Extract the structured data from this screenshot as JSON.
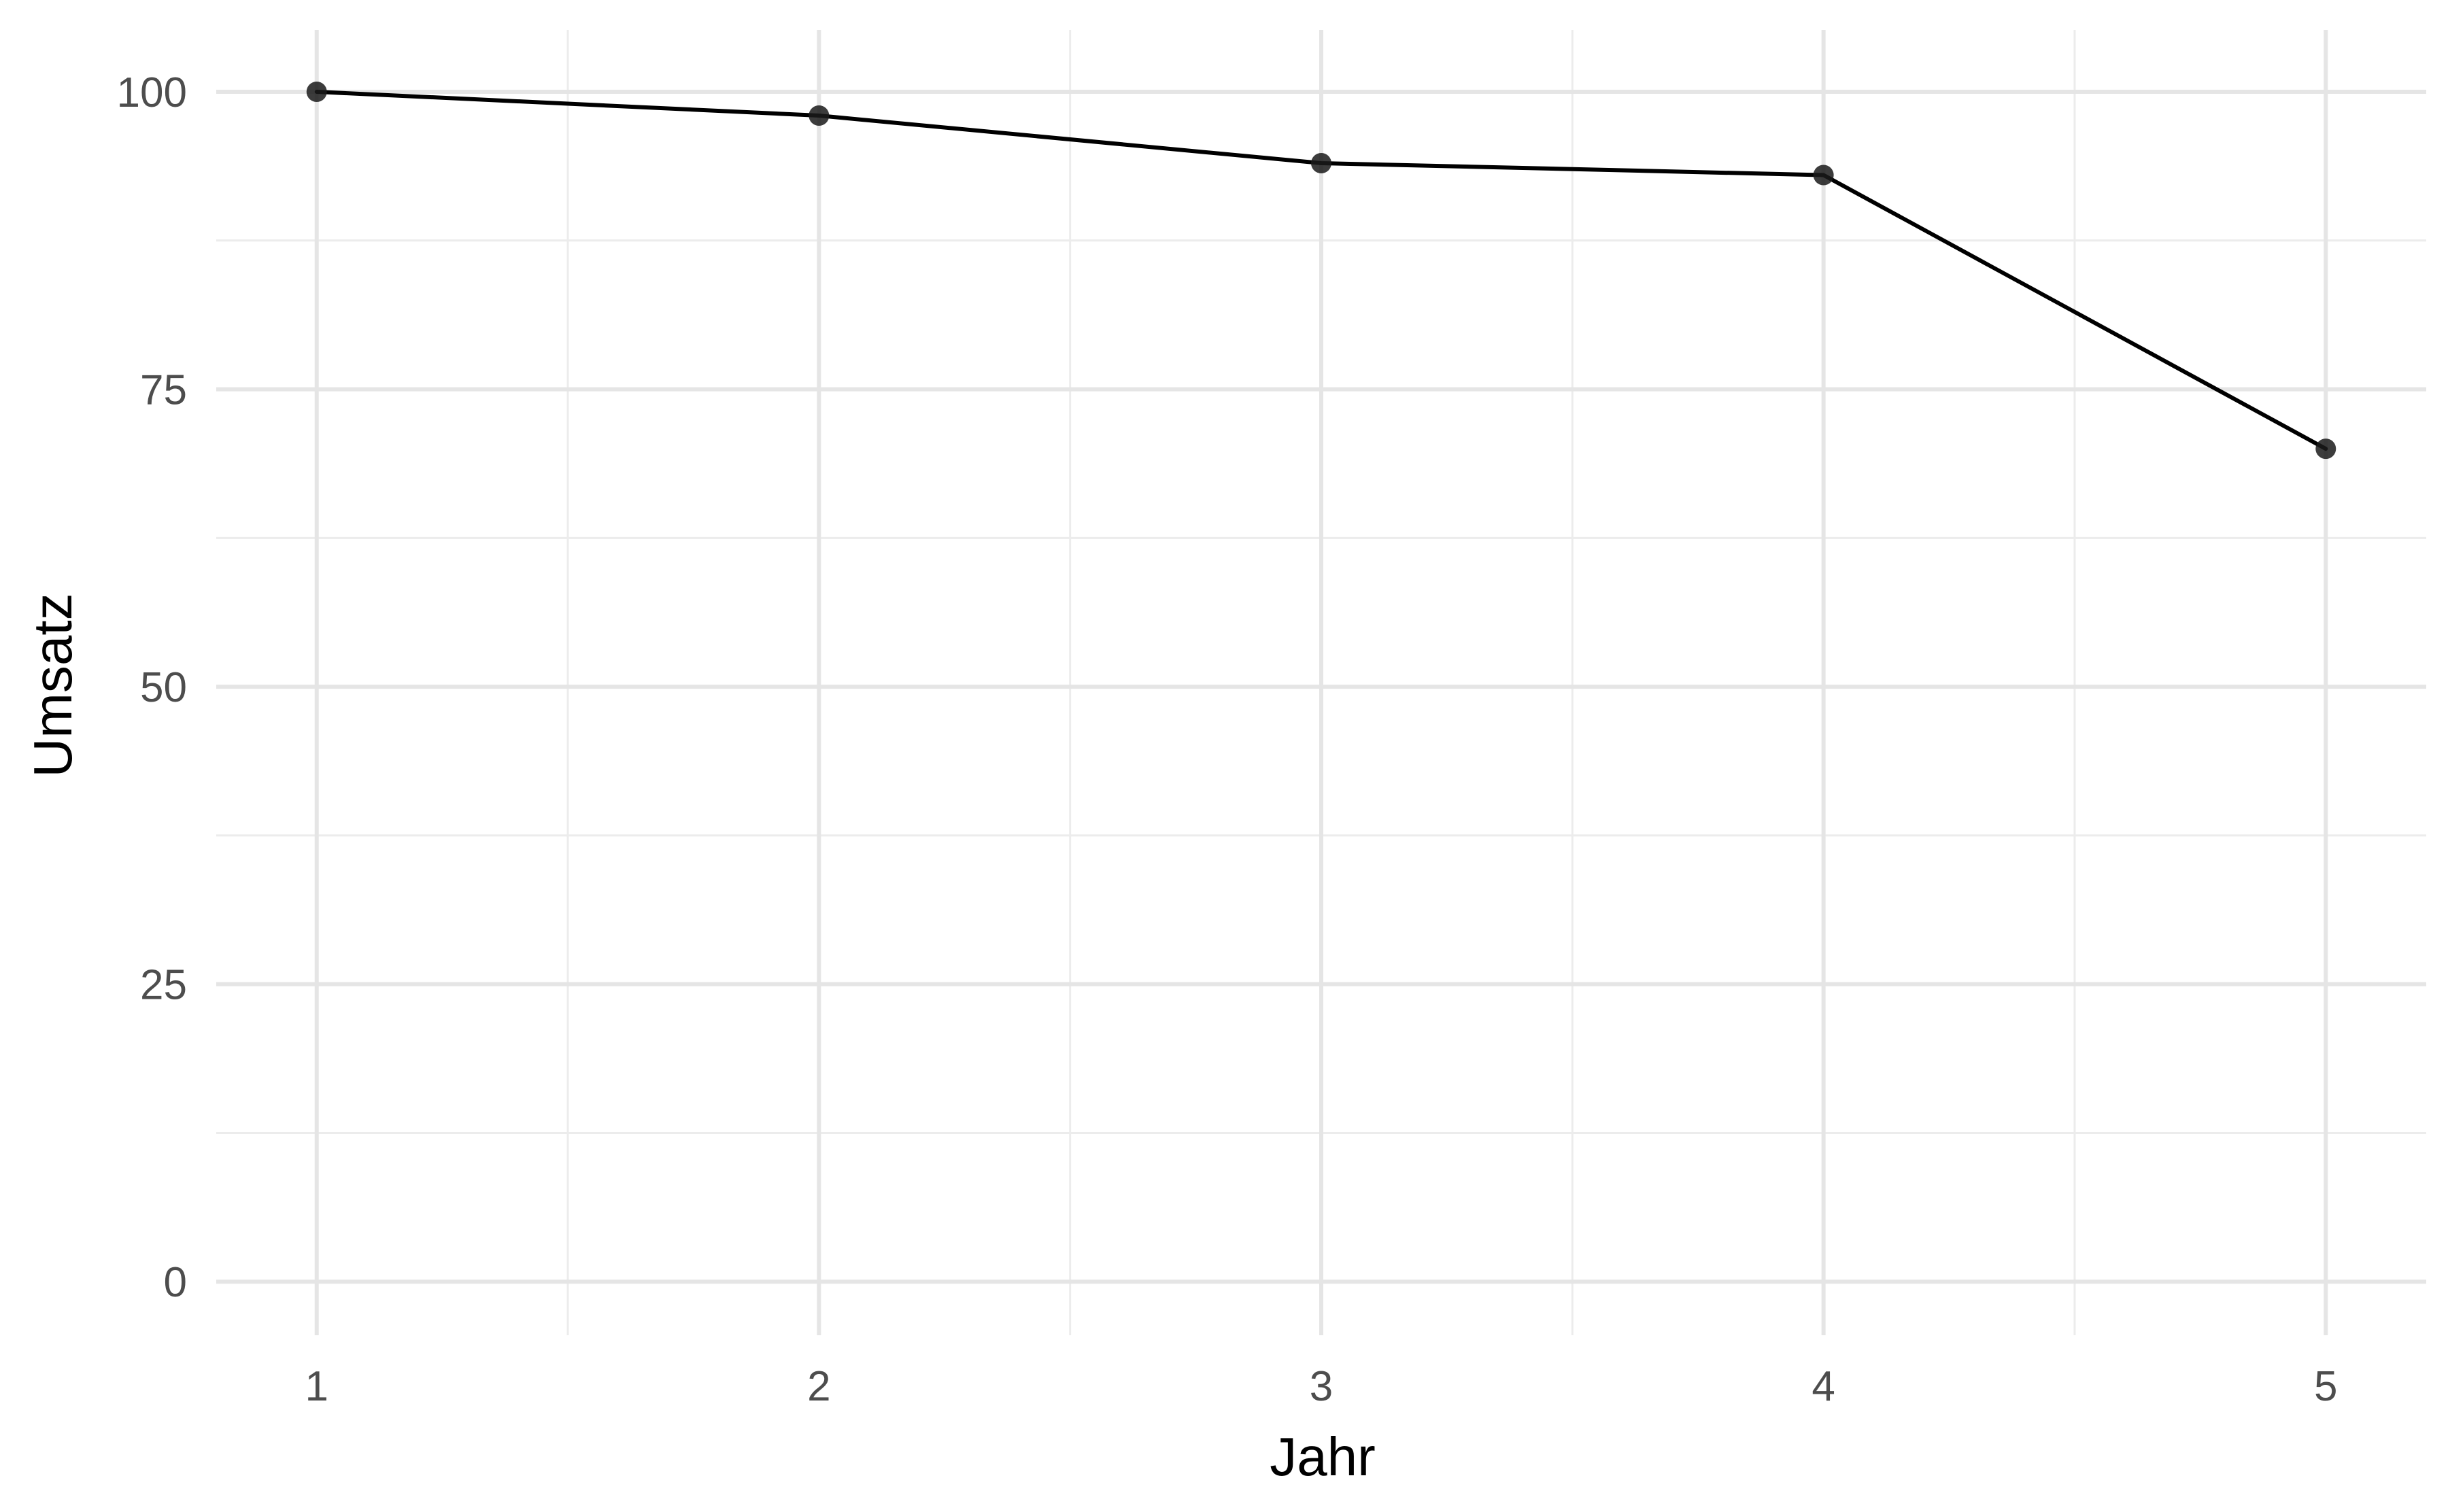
{
  "chart_data": {
    "type": "line",
    "title": "",
    "xlabel": "Jahr",
    "ylabel": "Umsatz",
    "x": [
      1,
      2,
      3,
      4,
      5
    ],
    "series": [
      {
        "values": [
          100,
          98,
          94,
          93,
          70
        ]
      }
    ],
    "xlim": [
      0.8,
      5.2
    ],
    "ylim": [
      -4.5,
      105.2
    ],
    "x_ticks": [
      1,
      2,
      3,
      4,
      5
    ],
    "x_tick_labels": [
      "1",
      "2",
      "3",
      "4",
      "5"
    ],
    "y_ticks": [
      0,
      25,
      50,
      75,
      100
    ],
    "y_tick_labels": [
      "0",
      "25",
      "50",
      "75",
      "100"
    ],
    "x_minor_ticks": [
      1.5,
      2.5,
      3.5,
      4.5
    ],
    "y_minor_ticks": [
      12.5,
      37.5,
      62.5,
      87.5
    ],
    "grid": true,
    "legend": "none",
    "colors": {
      "line": "#000000",
      "point": "#1a1a1a",
      "grid_major": "#e5e5e5",
      "grid_minor": "#ececec",
      "tick_label": "#4d4d4d",
      "axis_title": "#000000"
    }
  }
}
